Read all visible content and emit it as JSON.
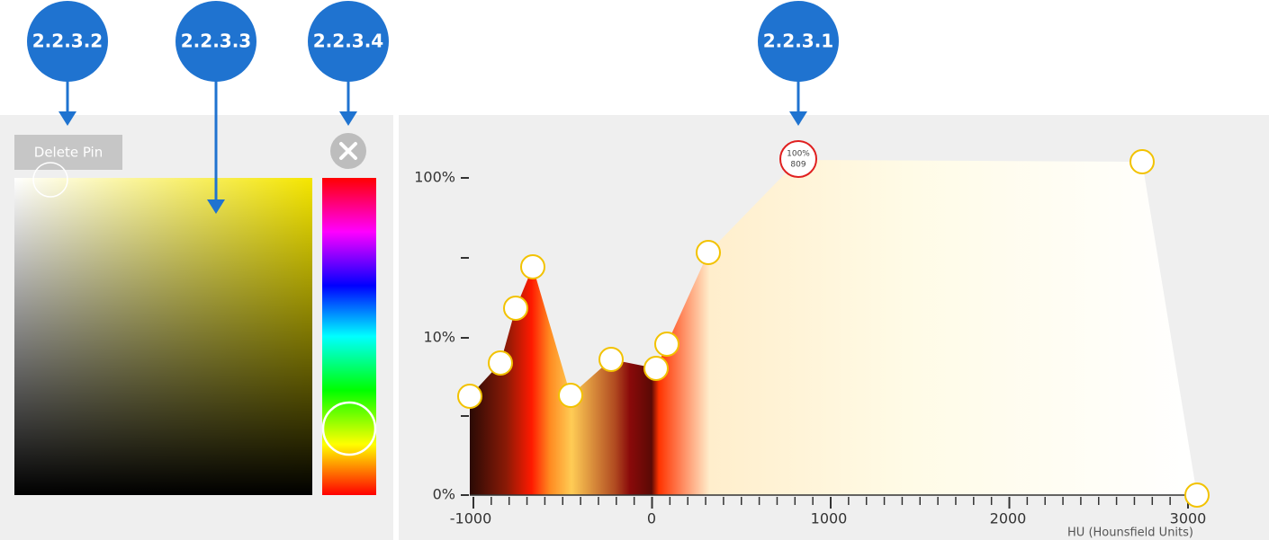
{
  "callouts": [
    "2.2.3.2",
    "2.2.3.3",
    "2.2.3.4",
    "2.2.3.1"
  ],
  "color_picker": {
    "button": "Delete Pin"
  },
  "transfer_function": {
    "y_labels": [
      "100%",
      "10%",
      "0%"
    ],
    "x_labels": [
      "-1000",
      "0",
      "1000",
      "2000",
      "3000"
    ],
    "x_axis_title": "HU (Hounsfield Units)",
    "selected_pin": {
      "opacity": "100%",
      "hu": "809"
    }
  }
}
